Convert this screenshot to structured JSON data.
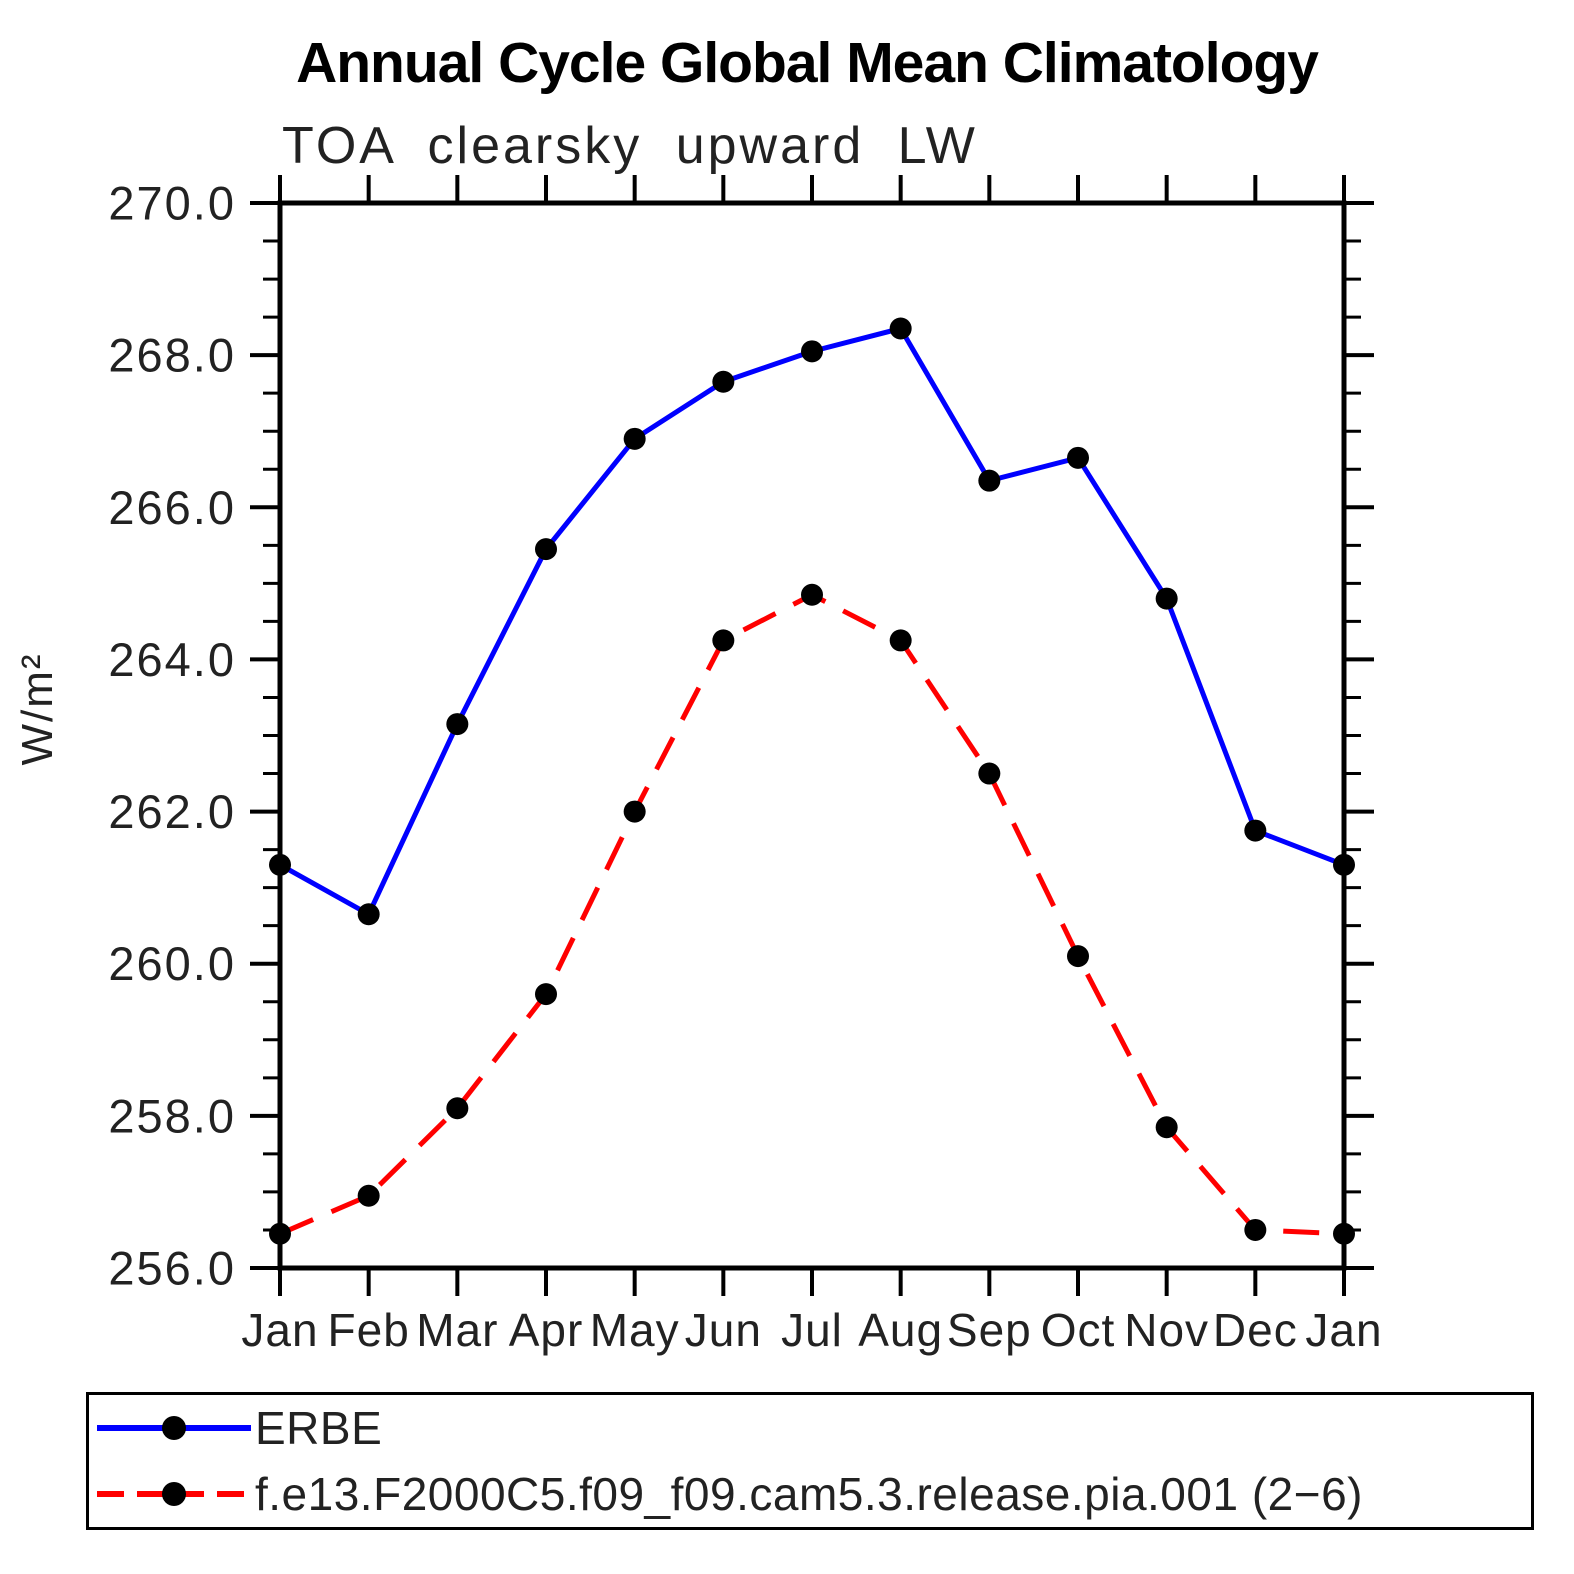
{
  "chart_data": {
    "type": "line",
    "title": "Annual Cycle Global Mean Climatology",
    "subtitle": "TOA clearsky upward LW",
    "ylabel": "W/m²",
    "x_categories": [
      "Jan",
      "Feb",
      "Mar",
      "Apr",
      "May",
      "Jun",
      "Jul",
      "Aug",
      "Sep",
      "Oct",
      "Nov",
      "Dec",
      "Jan"
    ],
    "ylim": [
      256.0,
      270.0
    ],
    "ytick_interval": 2.0,
    "ytick_minor_interval": 0.5,
    "ytick_labels": [
      "256.0",
      "258.0",
      "260.0",
      "262.0",
      "264.0",
      "266.0",
      "268.0",
      "270.0"
    ],
    "grid": false,
    "legend_position": "bottom",
    "axis_color": "#000000",
    "marker_color": "#000000",
    "series": [
      {
        "name": "ERBE",
        "color": "#0000ff",
        "style": "solid",
        "marker": "circle",
        "values": [
          261.3,
          260.65,
          263.15,
          265.45,
          266.9,
          267.65,
          268.05,
          268.35,
          266.35,
          266.65,
          264.8,
          261.75,
          261.3
        ]
      },
      {
        "name": "f.e13.F2000C5.f09_f09.cam5.3.release.pia.001 (2−6)",
        "color": "#ff0000",
        "style": "dashed",
        "marker": "circle",
        "values": [
          256.45,
          256.95,
          258.1,
          259.6,
          262.0,
          264.25,
          264.85,
          264.25,
          262.5,
          260.1,
          257.85,
          256.5,
          256.45
        ]
      }
    ]
  }
}
